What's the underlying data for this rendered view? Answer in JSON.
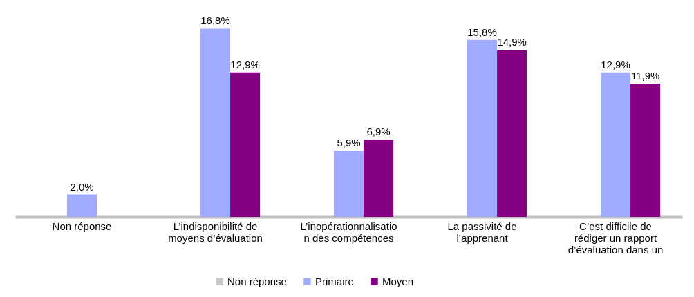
{
  "chart_data": {
    "type": "bar",
    "categories": [
      "Non réponse",
      "L’indisponibilité de\nmoyens d’évaluation",
      "L’inopérationnalisatio\nn des compétences",
      "La passivité de\nl’apprenant",
      "C’est difficile de\nrédiger un rapport\nd’évaluation dans un"
    ],
    "series": [
      {
        "name": "Non réponse",
        "color": "#c8c8c8",
        "values": [
          null,
          null,
          null,
          null,
          null
        ]
      },
      {
        "name": "Primaire",
        "color": "#a0aaff",
        "values": [
          2.0,
          16.8,
          5.9,
          15.8,
          12.9
        ],
        "value_labels": [
          "2,0%",
          "16,8%",
          "5,9%",
          "15,8%",
          "12,9%"
        ]
      },
      {
        "name": "Moyen",
        "color": "#860082",
        "values": [
          null,
          12.9,
          6.9,
          14.9,
          11.9
        ],
        "value_labels": [
          null,
          "12,9%",
          "6,9%",
          "14,9%",
          "11,9%"
        ]
      }
    ],
    "legend": "bottom"
  }
}
